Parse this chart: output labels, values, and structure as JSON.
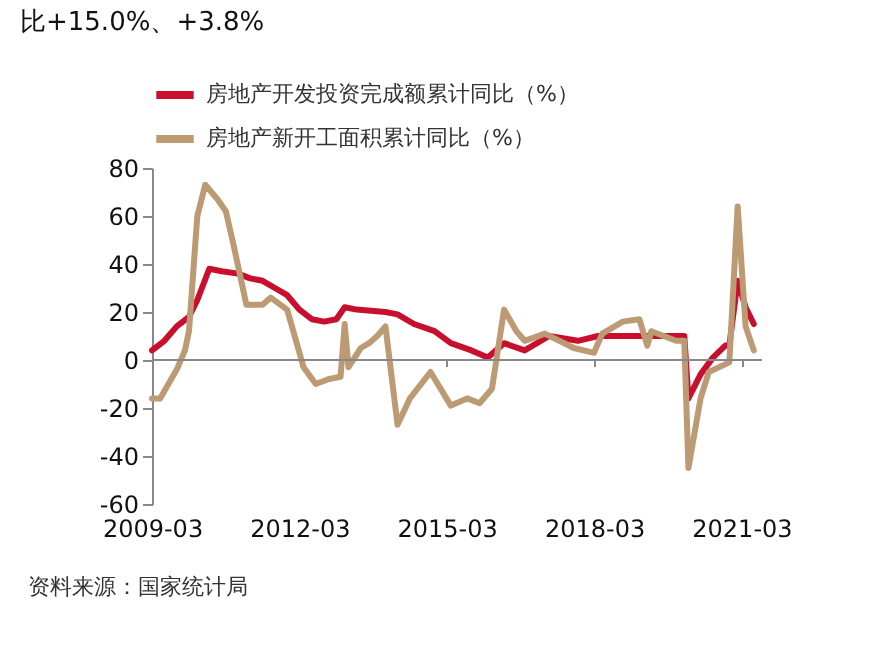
{
  "chart_data": {
    "type": "line",
    "title": "比+15.0%、+3.8%",
    "annotations": [
      "资料来源：国家统计局"
    ],
    "xlim": [
      "2009-03",
      "2021-08"
    ],
    "xticks": [
      "2009-03",
      "2012-03",
      "2015-03",
      "2018-03",
      "2021-03"
    ],
    "ylim": [
      -60,
      80
    ],
    "yticks": [
      -60,
      -40,
      -20,
      0,
      20,
      40,
      60,
      80
    ],
    "grid": false,
    "ref_lines": [
      {
        "axis": "y",
        "value": 0,
        "color": "#888888"
      }
    ],
    "legend": "top left",
    "line_style": "solid",
    "marker": "none",
    "series": [
      {
        "name": "房地产开发投资完成额累计同比（%）",
        "color": "#c8102e",
        "x": [
          "2009-03",
          "2009-06",
          "2009-09",
          "2009-12",
          "2010-02",
          "2010-05",
          "2010-08",
          "2010-12",
          "2011-03",
          "2011-06",
          "2011-09",
          "2011-12",
          "2012-03",
          "2012-06",
          "2012-09",
          "2012-12",
          "2013-02",
          "2013-05",
          "2013-12",
          "2014-03",
          "2014-07",
          "2014-12",
          "2015-04",
          "2015-09",
          "2016-01",
          "2016-05",
          "2016-10",
          "2017-04",
          "2017-11",
          "2018-04",
          "2019-02",
          "2020-01",
          "2020-02",
          "2020-05",
          "2020-08",
          "2020-11",
          "2020-12",
          "2021-02",
          "2021-04",
          "2021-06"
        ],
        "values": [
          4,
          8,
          14,
          18,
          25,
          38,
          37,
          36,
          34,
          33,
          30,
          27,
          21,
          17,
          16,
          17,
          22,
          21,
          20,
          19,
          15,
          12,
          7,
          4,
          1,
          7,
          4,
          10,
          8,
          10,
          10,
          10,
          -16,
          -6,
          1,
          6,
          6,
          33,
          22,
          15
        ]
      },
      {
        "name": "房地产新开工面积累计同比（%）",
        "color": "#bc9a74",
        "x": [
          "2009-03",
          "2009-05",
          "2009-07",
          "2009-09",
          "2009-11",
          "2009-12",
          "2010-02",
          "2010-04",
          "2010-07",
          "2010-09",
          "2010-11",
          "2011-02",
          "2011-06",
          "2011-08",
          "2011-12",
          "2012-04",
          "2012-07",
          "2012-10",
          "2013-01",
          "2013-02",
          "2013-03",
          "2013-06",
          "2013-08",
          "2013-10",
          "2013-12",
          "2014-03",
          "2014-06",
          "2014-11",
          "2015-04",
          "2015-08",
          "2015-11",
          "2016-02",
          "2016-05",
          "2016-08",
          "2016-10",
          "2017-03",
          "2017-10",
          "2018-03",
          "2018-05",
          "2018-10",
          "2019-02",
          "2019-04",
          "2019-05",
          "2019-11",
          "2020-01",
          "2020-02",
          "2020-05",
          "2020-07",
          "2020-12",
          "2021-02",
          "2021-04",
          "2021-06"
        ],
        "values": [
          -16,
          -16,
          -10,
          -4,
          4,
          12,
          60,
          73,
          67,
          62,
          47,
          23,
          23,
          26,
          21,
          -3,
          -10,
          -8,
          -7,
          15,
          -3,
          5,
          7,
          10,
          14,
          -27,
          -16,
          -5,
          -19,
          -16,
          -18,
          -12,
          21,
          12,
          8,
          11,
          5,
          3,
          11,
          16,
          17,
          6,
          12,
          8,
          8,
          -45,
          -16,
          -5,
          -1,
          64,
          14,
          4
        ]
      }
    ]
  }
}
